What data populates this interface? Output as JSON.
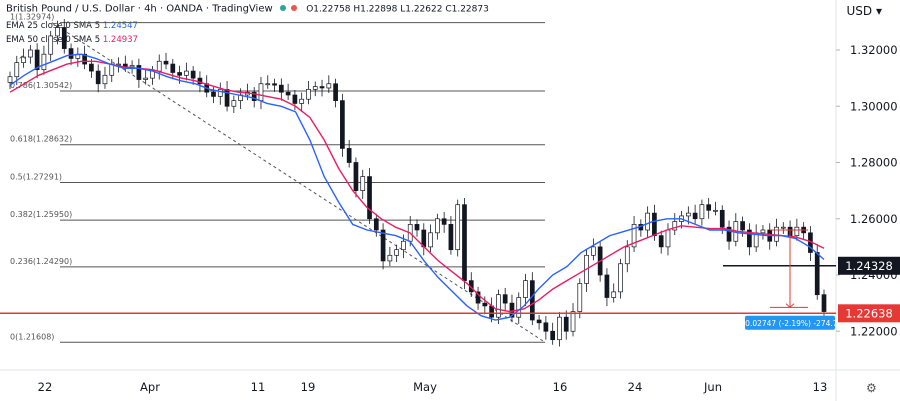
{
  "header": {
    "title": "British Pound / U.S. Dollar · 4h · OANDA · TradingView",
    "ohlc": "O1.22758 H1.22898 L1.22622 C1.22873",
    "currency": "USD"
  },
  "indicators": [
    {
      "label": "EMA 25 close 0 SMA 5",
      "value": "1.24547",
      "color": "#2962ff"
    },
    {
      "label": "EMA 50 close 0 SMA 5",
      "value": "1.24937",
      "color": "#e91e63"
    }
  ],
  "chart_data": {
    "type": "candlestick",
    "x_tick_labels": [
      "22",
      "Apr",
      "11",
      "19",
      "May",
      "16",
      "24",
      "Jun",
      "13"
    ],
    "y_tick_labels": [
      "1.32000",
      "1.30000",
      "1.28000",
      "1.26000",
      "1.24000",
      "1.22000"
    ],
    "ylim": [
      1.208,
      1.336
    ],
    "fibonacci_levels": [
      {
        "label": "1(1.32974)",
        "price": 1.32974
      },
      {
        "label": "0.786(1.30542)",
        "price": 1.30542
      },
      {
        "label": "0.618(1.28632)",
        "price": 1.28632
      },
      {
        "label": "0.5(1.27291)",
        "price": 1.27291
      },
      {
        "label": "0.382(1.25950)",
        "price": 1.2595
      },
      {
        "label": "0.236(1.24290)",
        "price": 1.2429
      },
      {
        "label": "0(1.21608)",
        "price": 1.21608
      }
    ],
    "horizontal_lines": [
      {
        "price": 1.24328,
        "label": "1.24328",
        "color": "#131722"
      },
      {
        "price": 1.22638,
        "label": "1.22638",
        "color": "#e53935"
      }
    ],
    "measure_label": "-0.02747 (-2.19%) -274.7",
    "series_close": [
      1.3105,
      1.3155,
      1.3175,
      1.32,
      1.313,
      1.3185,
      1.325,
      1.328,
      1.3205,
      1.317,
      1.3185,
      1.315,
      1.3125,
      1.308,
      1.311,
      1.315,
      1.315,
      1.314,
      1.3145,
      1.3095,
      1.31,
      1.3125,
      1.316,
      1.315,
      1.312,
      1.311,
      1.3125,
      1.31,
      1.308,
      1.305,
      1.3035,
      1.306,
      1.3,
      1.302,
      1.304,
      1.305,
      1.302,
      1.308,
      1.308,
      1.3075,
      1.305,
      1.304,
      1.301,
      1.3025,
      1.306,
      1.307,
      1.3065,
      1.308,
      1.302,
      1.285,
      1.28,
      1.27,
      1.275,
      1.26,
      1.256,
      1.245,
      1.247,
      1.249,
      1.252,
      1.258,
      1.256,
      1.25,
      1.255,
      1.26,
      1.258,
      1.249,
      1.265,
      1.238,
      1.234,
      1.23,
      1.229,
      1.225,
      1.233,
      1.23,
      1.225,
      1.232,
      1.238,
      1.224,
      1.223,
      1.22,
      1.217,
      1.225,
      1.22,
      1.227,
      1.237,
      1.247,
      1.25,
      1.24,
      1.232,
      1.234,
      1.244,
      1.25,
      1.258,
      1.256,
      1.262,
      1.254,
      1.25,
      1.256,
      1.259,
      1.261,
      1.262,
      1.26,
      1.265,
      1.263,
      1.263,
      1.257,
      1.252,
      1.259,
      1.256,
      1.25,
      1.255,
      1.256,
      1.252,
      1.257,
      1.257,
      1.254,
      1.257,
      1.255,
      1.248,
      1.233,
      1.227
    ],
    "ema25": [
      1.3075,
      1.311,
      1.314,
      1.316,
      1.318,
      1.3185,
      1.317,
      1.315,
      1.3135,
      1.3135,
      1.3125,
      1.3105,
      1.309,
      1.308,
      1.306,
      1.305,
      1.304,
      1.303,
      1.301,
      1.3,
      1.298,
      1.288,
      1.275,
      1.266,
      1.258,
      1.256,
      1.255,
      1.254,
      1.252,
      1.245,
      1.239,
      1.234,
      1.229,
      1.2255,
      1.224,
      1.225,
      1.229,
      1.235,
      1.24,
      1.243,
      1.248,
      1.251,
      1.254,
      1.2555,
      1.257,
      1.259,
      1.26,
      1.26,
      1.258,
      1.256,
      1.256,
      1.255,
      1.2545,
      1.254,
      1.254,
      1.253,
      1.25,
      1.2455
    ],
    "ema50": [
      1.305,
      1.308,
      1.311,
      1.313,
      1.315,
      1.316,
      1.316,
      1.315,
      1.314,
      1.3135,
      1.313,
      1.3115,
      1.31,
      1.309,
      1.3075,
      1.306,
      1.305,
      1.3045,
      1.3035,
      1.3025,
      1.3,
      1.296,
      1.288,
      1.278,
      1.27,
      1.264,
      1.26,
      1.257,
      1.255,
      1.25,
      1.245,
      1.241,
      1.237,
      1.232,
      1.228,
      1.227,
      1.228,
      1.231,
      1.235,
      1.238,
      1.241,
      1.244,
      1.247,
      1.25,
      1.252,
      1.254,
      1.256,
      1.2575,
      1.257,
      1.2565,
      1.2565,
      1.2555,
      1.255,
      1.2545,
      1.254,
      1.2535,
      1.252,
      1.2495
    ]
  }
}
